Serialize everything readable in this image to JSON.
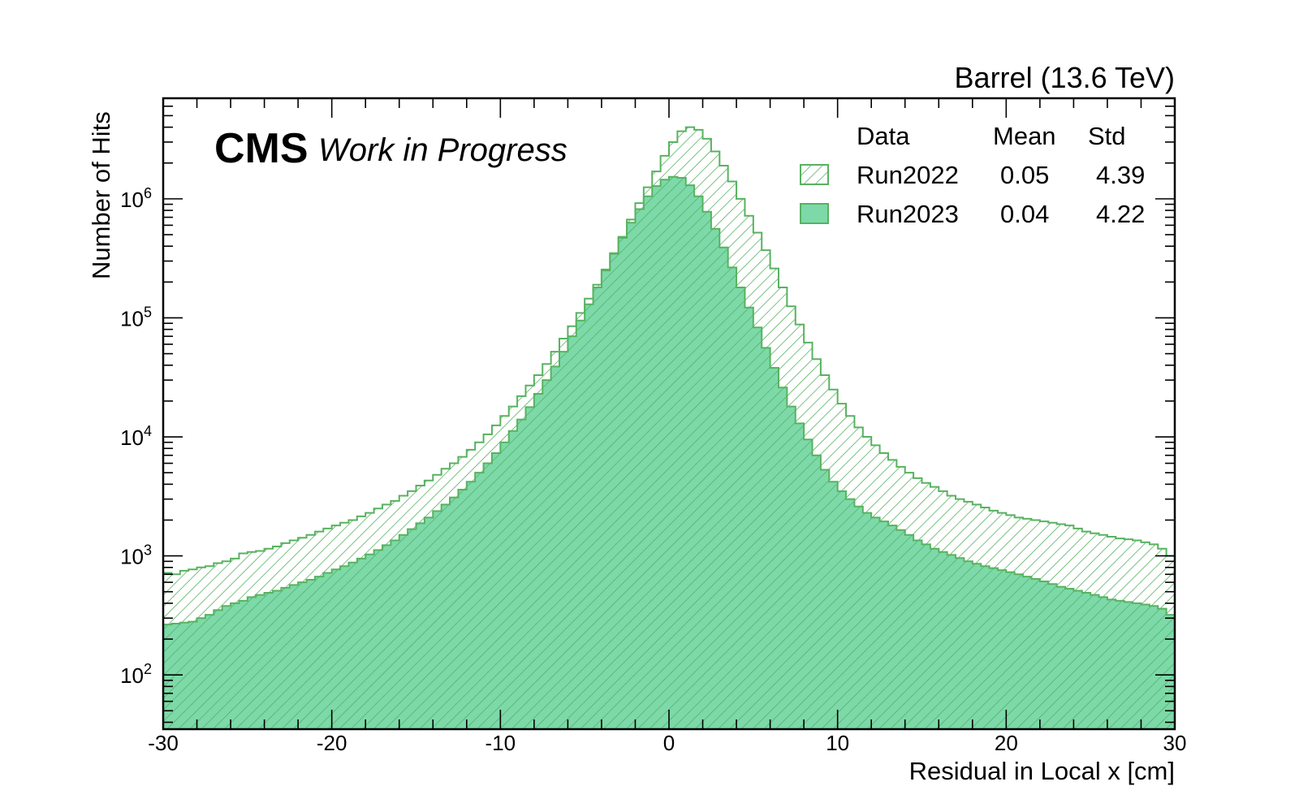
{
  "chart_data": {
    "type": "histogram",
    "title": "",
    "top_right_label": "Barrel (13.6 TeV)",
    "experiment_label": "CMS",
    "status_label": "Work in Progress",
    "xlabel": "Residual in Local x [cm]",
    "ylabel": "Number of Hits",
    "xlim": [
      -30,
      30
    ],
    "ylim": [
      35,
      7000000
    ],
    "yscale": "log",
    "x_ticks": [
      -30,
      -20,
      -10,
      0,
      10,
      20,
      30
    ],
    "x_tick_labels": [
      "-30",
      "-20",
      "-10",
      "0",
      "10",
      "20",
      "30"
    ],
    "y_ticks": [
      {
        "value": 100,
        "base": "10",
        "exp": "2"
      },
      {
        "value": 1000,
        "base": "10",
        "exp": "3"
      },
      {
        "value": 10000,
        "base": "10",
        "exp": "4"
      },
      {
        "value": 100000,
        "base": "10",
        "exp": "5"
      },
      {
        "value": 1000000,
        "base": "10",
        "exp": "6"
      }
    ],
    "grid": false,
    "legend": {
      "placement": "top-right",
      "headers": [
        "Data",
        "Mean",
        "Std"
      ],
      "entries": [
        {
          "name": "Run2022",
          "mean": "0.05",
          "std": "4.39"
        },
        {
          "name": "Run2023",
          "mean": "0.04",
          "std": "4.22"
        }
      ]
    },
    "bin_edges": [
      -30,
      30
    ],
    "n_bins": 120,
    "series": [
      {
        "name": "Run2022",
        "style": "hatched",
        "values": [
          720,
          700,
          750,
          770,
          800,
          820,
          870,
          900,
          950,
          1050,
          1080,
          1100,
          1150,
          1200,
          1280,
          1350,
          1420,
          1500,
          1600,
          1700,
          1800,
          1900,
          2000,
          2150,
          2300,
          2500,
          2700,
          2900,
          3200,
          3500,
          3900,
          4300,
          4800,
          5400,
          6000,
          6800,
          7800,
          9000,
          10500,
          12500,
          15000,
          18000,
          22000,
          27000,
          33000,
          41000,
          52000,
          67000,
          85000,
          110000,
          145000,
          190000,
          255000,
          350000,
          480000,
          670000,
          920000,
          1250000,
          1700000,
          2300000,
          3000000,
          3700000,
          4000000,
          3800000,
          3200000,
          2500000,
          1900000,
          1400000,
          1000000,
          720000,
          520000,
          370000,
          260000,
          180000,
          125000,
          88000,
          62000,
          45000,
          33000,
          25000,
          19000,
          15000,
          12000,
          10000,
          8500,
          7300,
          6400,
          5600,
          5000,
          4500,
          4100,
          3800,
          3500,
          3200,
          3000,
          2850,
          2700,
          2550,
          2400,
          2300,
          2200,
          2100,
          2050,
          2000,
          1950,
          1900,
          1850,
          1800,
          1700,
          1600,
          1550,
          1500,
          1450,
          1400,
          1380,
          1350,
          1300,
          1250,
          1150,
          1000
        ]
      },
      {
        "name": "Run2023",
        "style": "filled",
        "values": [
          265,
          270,
          275,
          280,
          300,
          320,
          350,
          380,
          400,
          420,
          450,
          470,
          490,
          510,
          540,
          570,
          600,
          630,
          670,
          720,
          770,
          820,
          880,
          950,
          1030,
          1120,
          1230,
          1350,
          1500,
          1680,
          1880,
          2100,
          2380,
          2700,
          3100,
          3600,
          4200,
          5000,
          6000,
          7300,
          9000,
          11200,
          14000,
          17800,
          23000,
          30000,
          39000,
          52000,
          70000,
          95000,
          130000,
          180000,
          250000,
          345000,
          470000,
          630000,
          820000,
          1050000,
          1280000,
          1450000,
          1530000,
          1500000,
          1300000,
          1050000,
          780000,
          560000,
          390000,
          265000,
          180000,
          122000,
          83000,
          56000,
          38000,
          26000,
          18000,
          13000,
          9500,
          7000,
          5300,
          4200,
          3500,
          3000,
          2600,
          2300,
          2100,
          1950,
          1800,
          1650,
          1500,
          1350,
          1250,
          1150,
          1080,
          1020,
          960,
          900,
          860,
          820,
          790,
          760,
          730,
          700,
          670,
          640,
          610,
          580,
          550,
          530,
          510,
          490,
          470,
          450,
          430,
          420,
          410,
          400,
          390,
          380,
          360,
          320
        ]
      }
    ],
    "colors": {
      "fill": "#7dd9a8",
      "edge": "#58b260",
      "hatch_dark": "#4cae63",
      "hatch_light": "#58b260",
      "hatch_bg": "#ffffff"
    }
  }
}
